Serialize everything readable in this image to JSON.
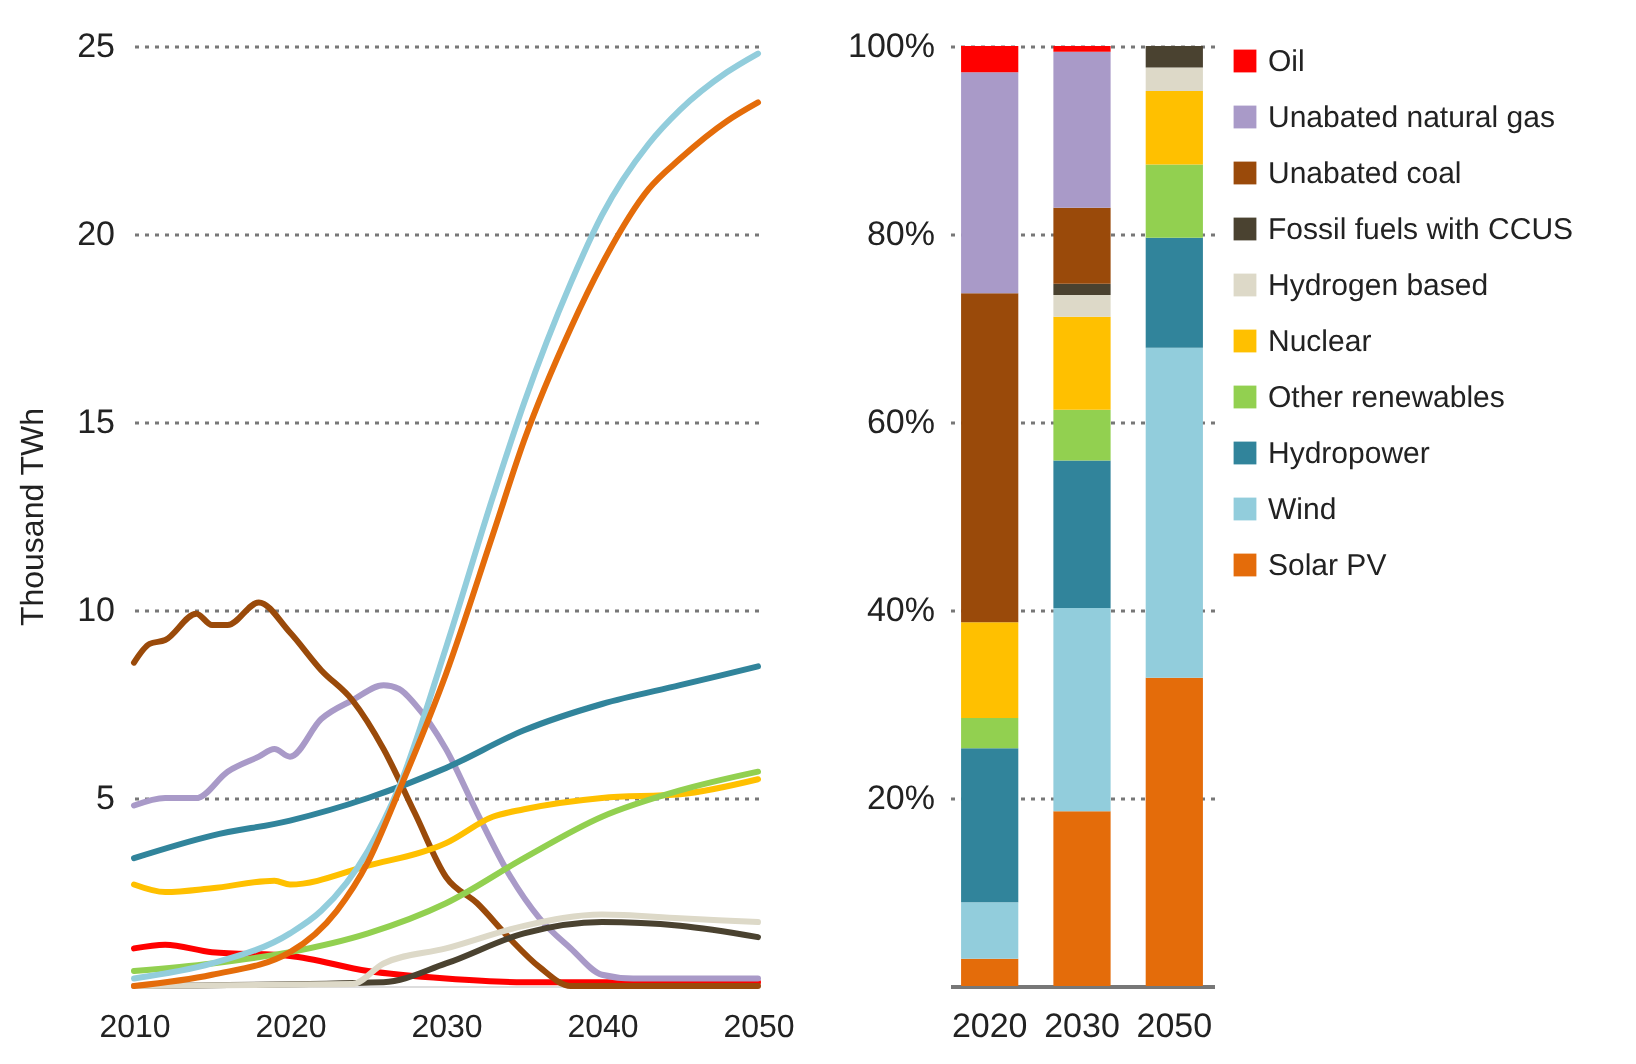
{
  "chart_data": [
    {
      "type": "line",
      "ylabel": "Thousand TWh",
      "xlim": [
        2010,
        2050
      ],
      "xticks": [
        2010,
        2020,
        2030,
        2040,
        2050
      ],
      "ylim": [
        0,
        25
      ],
      "yticks": [
        5,
        10,
        15,
        20,
        25
      ],
      "grid": "y",
      "series": [
        {
          "color": "#ff0000",
          "x": [
            2010,
            2012,
            2015,
            2020,
            2025,
            2030,
            2035,
            2040,
            2050
          ],
          "values": [
            1.0,
            1.1,
            0.9,
            0.8,
            0.4,
            0.2,
            0.1,
            0.1,
            0.1
          ]
        },
        {
          "color": "#a99ac8",
          "x": [
            2010,
            2012,
            2014,
            2016,
            2018,
            2019,
            2020,
            2022,
            2024,
            2026,
            2027,
            2028,
            2030,
            2032,
            2034,
            2036,
            2038,
            2040,
            2042,
            2050
          ],
          "values": [
            4.8,
            5.0,
            5.0,
            5.7,
            6.1,
            6.3,
            6.1,
            7.1,
            7.6,
            8.0,
            7.9,
            7.5,
            6.3,
            4.6,
            3.0,
            1.8,
            1.0,
            0.3,
            0.2,
            0.2
          ]
        },
        {
          "color": "#9a4a0a",
          "x": [
            2010,
            2011,
            2012,
            2014,
            2015,
            2016,
            2018,
            2020,
            2022,
            2024,
            2026,
            2028,
            2030,
            2032,
            2034,
            2036,
            2038,
            2040,
            2050
          ],
          "values": [
            8.6,
            9.1,
            9.2,
            9.9,
            9.6,
            9.6,
            10.2,
            9.4,
            8.4,
            7.6,
            6.3,
            4.6,
            2.9,
            2.2,
            1.3,
            0.5,
            0,
            0,
            0
          ]
        },
        {
          "color": "#4a4230",
          "x": [
            2010,
            2026,
            2030,
            2035,
            2040,
            2045,
            2050
          ],
          "values": [
            0,
            0.1,
            0.6,
            1.4,
            1.7,
            1.6,
            1.3
          ]
        },
        {
          "color": "#ddd9c8",
          "x": [
            2010,
            2024,
            2026,
            2030,
            2035,
            2040,
            2045,
            2050
          ],
          "values": [
            0,
            0.05,
            0.6,
            1.0,
            1.6,
            1.9,
            1.8,
            1.7
          ]
        },
        {
          "color": "#ffc000",
          "x": [
            2010,
            2012,
            2015,
            2019,
            2020,
            2025,
            2030,
            2033,
            2035,
            2040,
            2045,
            2050
          ],
          "values": [
            2.7,
            2.5,
            2.6,
            2.8,
            2.7,
            3.2,
            3.8,
            4.5,
            4.7,
            5.0,
            5.1,
            5.5
          ]
        },
        {
          "color": "#92d050",
          "x": [
            2010,
            2015,
            2020,
            2025,
            2030,
            2035,
            2040,
            2045,
            2050
          ],
          "values": [
            0.4,
            0.6,
            0.9,
            1.4,
            2.2,
            3.4,
            4.5,
            5.2,
            5.7
          ]
        },
        {
          "color": "#31849b",
          "x": [
            2010,
            2015,
            2020,
            2025,
            2030,
            2035,
            2040,
            2045,
            2050
          ],
          "values": [
            3.4,
            4.0,
            4.4,
            5.0,
            5.8,
            6.8,
            7.5,
            8.0,
            8.5
          ]
        },
        {
          "color": "#92cddc",
          "x": [
            2010,
            2015,
            2020,
            2022,
            2025,
            2027,
            2030,
            2033,
            2035,
            2038,
            2040,
            2043,
            2045,
            2048,
            2050
          ],
          "values": [
            0.2,
            0.6,
            1.4,
            2.0,
            3.6,
            5.3,
            9.0,
            13.0,
            15.5,
            18.7,
            20.5,
            22.4,
            23.3,
            24.3,
            24.8
          ]
        },
        {
          "color": "#e46c0a",
          "x": [
            2010,
            2015,
            2020,
            2023,
            2025,
            2027,
            2030,
            2033,
            2035,
            2038,
            2040,
            2043,
            2045,
            2048,
            2050
          ],
          "values": [
            0,
            0.3,
            0.9,
            2.0,
            3.3,
            5.2,
            8.3,
            12.0,
            14.5,
            17.5,
            19.2,
            21.2,
            22.0,
            23.0,
            23.5
          ]
        }
      ]
    },
    {
      "type": "bar",
      "stacked": true,
      "categories": [
        "2020",
        "2030",
        "2050"
      ],
      "ylim": [
        0,
        100
      ],
      "yticks": [
        {
          "value": 20,
          "label": "20%"
        },
        {
          "value": 40,
          "label": "40%"
        },
        {
          "value": 60,
          "label": "60%"
        },
        {
          "value": 80,
          "label": "80%"
        },
        {
          "value": 100,
          "label": "100%"
        }
      ],
      "grid": "y",
      "legend": "right",
      "series": [
        {
          "name": "Solar PV",
          "color": "#e46c0a",
          "values": [
            2.9,
            18.6,
            32.8
          ]
        },
        {
          "name": "Wind",
          "color": "#92cddc",
          "values": [
            6.0,
            21.6,
            35.1
          ]
        },
        {
          "name": "Hydropower",
          "color": "#31849b",
          "values": [
            16.4,
            15.7,
            11.7
          ]
        },
        {
          "name": "Other renewables",
          "color": "#92d050",
          "values": [
            3.2,
            5.4,
            7.8
          ]
        },
        {
          "name": "Nuclear",
          "color": "#ffc000",
          "values": [
            10.2,
            9.9,
            7.8
          ]
        },
        {
          "name": "Hydrogen based",
          "color": "#ddd9c8",
          "values": [
            0,
            2.3,
            2.5
          ]
        },
        {
          "name": "Fossil fuels with CCUS",
          "color": "#4a4230",
          "values": [
            0,
            1.2,
            2.3
          ]
        },
        {
          "name": "Unabated coal",
          "color": "#9a4a0a",
          "values": [
            35.0,
            8.1,
            0
          ]
        },
        {
          "name": "Unabated natural gas",
          "color": "#a99ac8",
          "values": [
            23.5,
            16.6,
            0
          ]
        },
        {
          "name": "Oil",
          "color": "#ff0000",
          "values": [
            2.8,
            0.6,
            0
          ]
        }
      ]
    }
  ]
}
